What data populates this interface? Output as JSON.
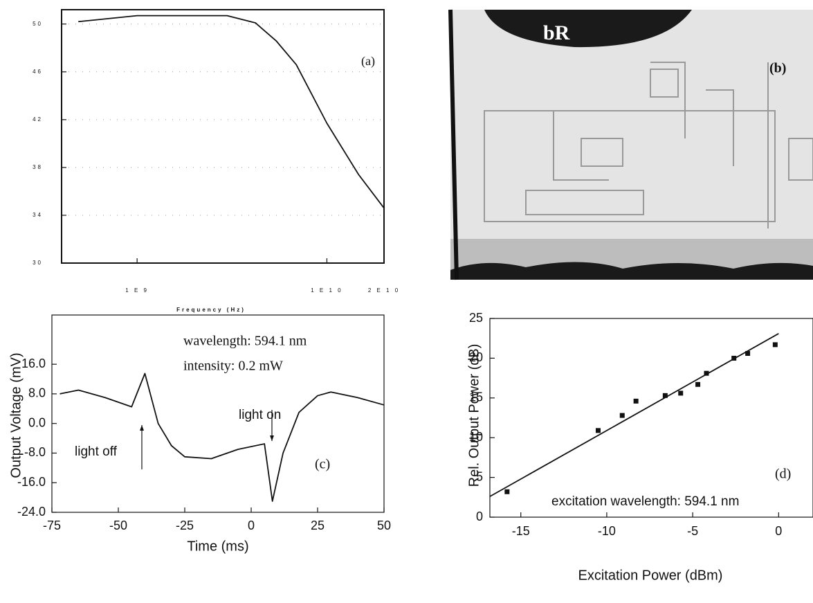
{
  "chart_data": [
    {
      "type": "line",
      "xlabel": "Frequency (Hz)",
      "annotations": [
        "(a)"
      ],
      "xlog": true,
      "grid": true,
      "xlim": [
        400000000,
        20000000000
      ],
      "xticks": [
        {
          "value": 1000000000,
          "label": "1 E 9"
        },
        {
          "value": 10000000000,
          "label": "1 E 1 0"
        },
        {
          "value": 20000000000,
          "label": "2 E 1 0"
        }
      ],
      "ylim": [
        30,
        51.2
      ],
      "yticks": [
        30,
        34,
        38,
        42,
        46,
        50
      ],
      "series": [
        {
          "color": "#111111",
          "mode": "line",
          "x": [
            490000000,
            1000000000,
            2980000000,
            4200000000,
            5400000000,
            6900000000,
            10000000000,
            14700000000,
            20000000000
          ],
          "values": [
            50.2,
            50.7,
            50.7,
            50.1,
            48.6,
            46.6,
            41.7,
            37.4,
            34.6
          ]
        }
      ]
    },
    {
      "type": "line",
      "xlabel": "Time (ms)",
      "ylabel": "Output Voltage (mV)",
      "annotations": [
        "wavelength: 594.1 nm",
        "intensity: 0.2 mW",
        "light on",
        "light off",
        "(c)"
      ],
      "grid": false,
      "xlim": [
        -75,
        50
      ],
      "xticks": [
        -75,
        -50,
        -25,
        0,
        25,
        50
      ],
      "ylim": [
        -24,
        29.3
      ],
      "yticks": [
        {
          "value": -24,
          "label": "-24.0"
        },
        {
          "value": -16,
          "label": "-16.0"
        },
        {
          "value": -8,
          "label": "-8.0"
        },
        {
          "value": 0,
          "label": "0.0"
        },
        {
          "value": 8,
          "label": "8.0"
        },
        {
          "value": 16,
          "label": "16.0"
        }
      ],
      "series": [
        {
          "color": "#111111",
          "mode": "line",
          "x": [
            -72,
            -65,
            -55,
            -45,
            -40,
            -35,
            -30,
            -25,
            -15,
            -5,
            5,
            8,
            12,
            18,
            25,
            30,
            40,
            50
          ],
          "values": [
            8,
            9,
            7,
            4.5,
            13.5,
            0,
            -6,
            -9,
            -9.5,
            -7,
            -5.5,
            -21,
            -8,
            3,
            7.5,
            8.5,
            7,
            5
          ]
        }
      ]
    },
    {
      "type": "scatter",
      "xlabel": "Excitation Power (dBm)",
      "ylabel": "Rel. Output Power (dB)",
      "annotations": [
        "excitation wavelength: 594.1 nm",
        "(d)"
      ],
      "grid": false,
      "xlim": [
        -16.8,
        2
      ],
      "xticks": [
        -15,
        -10,
        -5,
        0
      ],
      "ylim": [
        0,
        25
      ],
      "yticks": [
        0,
        5,
        10,
        15,
        20,
        25
      ],
      "series": [
        {
          "color": "#111111",
          "mode": "markers",
          "x": [
            -15.8,
            -10.5,
            -9.1,
            -8.3,
            -6.6,
            -5.7,
            -4.7,
            -4.2,
            -2.6,
            -1.8,
            -0.2
          ],
          "values": [
            3.2,
            10.9,
            12.8,
            14.6,
            15.3,
            15.6,
            16.7,
            18.1,
            20.0,
            20.6,
            21.7
          ]
        },
        {
          "color": "#111111",
          "mode": "line",
          "x": [
            -16.8,
            0
          ],
          "values": [
            2.6,
            23.1
          ]
        }
      ]
    }
  ],
  "panel_b": {
    "label": "bR",
    "tag": "(b)"
  }
}
